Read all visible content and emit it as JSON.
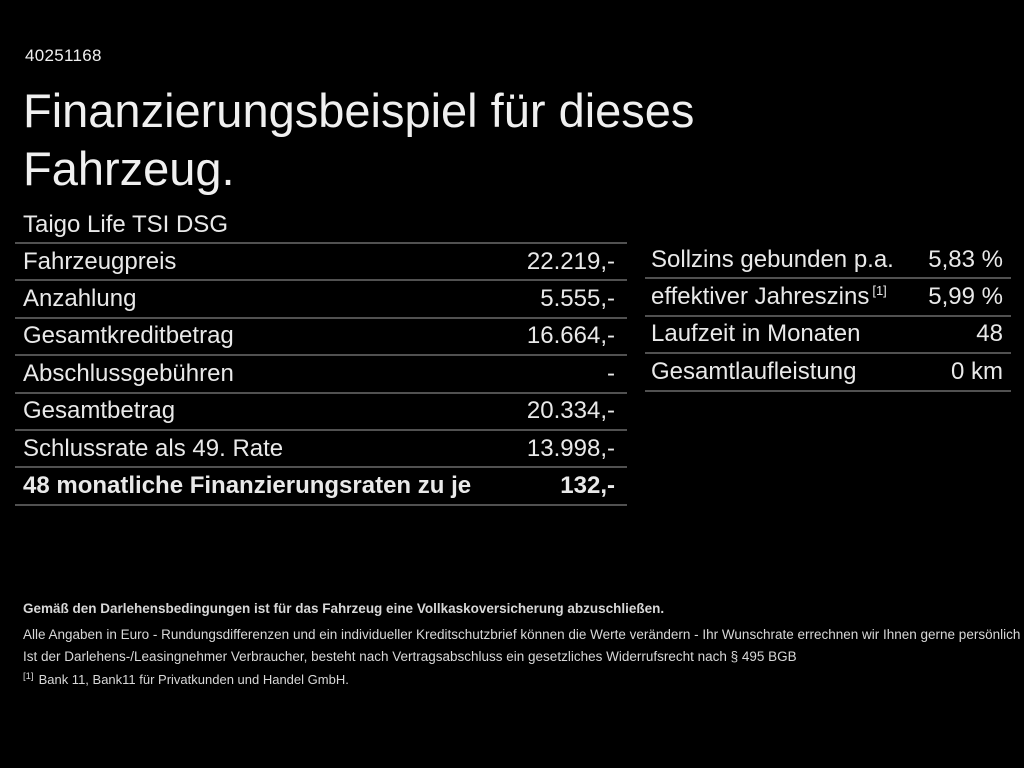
{
  "meta": {
    "id_number": "40251168"
  },
  "header": {
    "title_line1": "Finanzierungsbeispiel für dieses",
    "title_line2": "Fahrzeug.",
    "vehicle_name": "Taigo Life TSI DSG"
  },
  "finance_table": {
    "rows": [
      {
        "label": "Fahrzeugpreis",
        "value": "22.219,-"
      },
      {
        "label": "Anzahlung",
        "value": "5.555,-"
      },
      {
        "label": "Gesamtkreditbetrag",
        "value": "16.664,-"
      },
      {
        "label": "Abschlussgebühren",
        "value": "-"
      },
      {
        "label": "Gesamtbetrag",
        "value": "20.334,-"
      },
      {
        "label": "Schlussrate als 49. Rate",
        "value": "13.998,-"
      },
      {
        "label": "48 monatliche Finanzierungsraten zu je",
        "value": "132,-"
      }
    ]
  },
  "conditions_table": {
    "rows": [
      {
        "label": "Sollzins gebunden p.a.",
        "value": "5,83 %"
      },
      {
        "label": "effektiver Jahreszins",
        "label_superscript": "[1]",
        "value": "5,99 %"
      },
      {
        "label": "Laufzeit in Monaten",
        "value": "48"
      },
      {
        "label": "Gesamtlaufleistung",
        "value": "0 km"
      }
    ]
  },
  "footer": {
    "line_bold": "Gemäß den Darlehensbedingungen ist für das Fahrzeug eine Vollkaskoversicherung abzuschließen.",
    "line_2": "Alle Angaben in Euro - Rundungsdifferenzen und ein individueller Kreditschutzbrief können die Werte verändern - Ihr Wunschrate errechnen wir Ihnen gerne persönlich",
    "line_3": "Ist der Darlehens-/Leasingnehmer Verbraucher, besteht nach Vertragsabschluss ein gesetzliches Widerrufsrecht nach § 495 BGB",
    "footnote_marker": "[1]",
    "footnote_text": "Bank 11, Bank11 für Privatkunden und Handel GmbH."
  },
  "colors": {
    "background": "#000000",
    "text": "#f0f0f0",
    "table_text": "#e9e9e9",
    "divider": "#515151",
    "footer_text": "#d8d8d8"
  }
}
